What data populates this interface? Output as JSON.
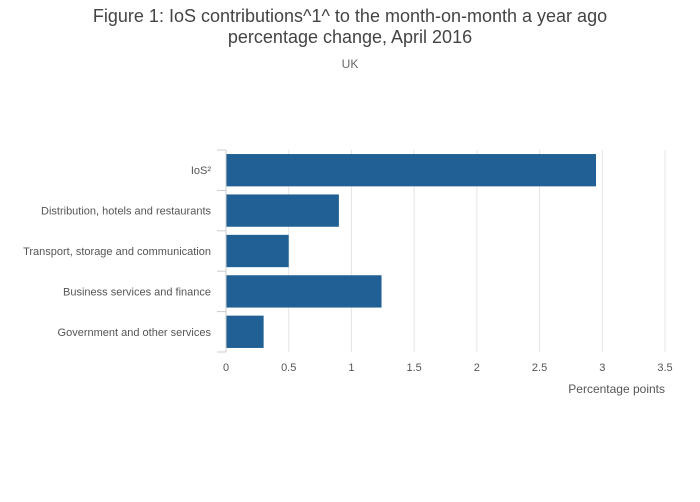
{
  "header": {
    "title_line1": "Figure 1: IoS contributions^1^ to the month-on-month a year ago",
    "title_line2": "percentage change, April 2016",
    "subtitle": "UK"
  },
  "chart_data": {
    "type": "bar",
    "orientation": "horizontal",
    "title": "Figure 1: IoS contributions^1^ to the month-on-month a year ago percentage change, April 2016",
    "subtitle": "UK",
    "categories": [
      "IoS²",
      "Distribution, hotels and restaurants",
      "Transport, storage and communication",
      "Business services and finance",
      "Government and other services"
    ],
    "values": [
      2.95,
      0.9,
      0.5,
      1.24,
      0.3
    ],
    "xlabel": "Percentage points",
    "ylabel": "",
    "xlim": [
      0,
      3.5
    ],
    "xticks": [
      "0",
      "0.5",
      "1",
      "1.5",
      "2",
      "2.5",
      "3",
      "3.5"
    ],
    "xtick_values": [
      0,
      0.5,
      1,
      1.5,
      2,
      2.5,
      3,
      3.5
    ],
    "grid": true,
    "legend": false,
    "colors": {
      "bar": "#206095",
      "grid": "#e5e5e5",
      "axis": "#cccccc"
    }
  }
}
